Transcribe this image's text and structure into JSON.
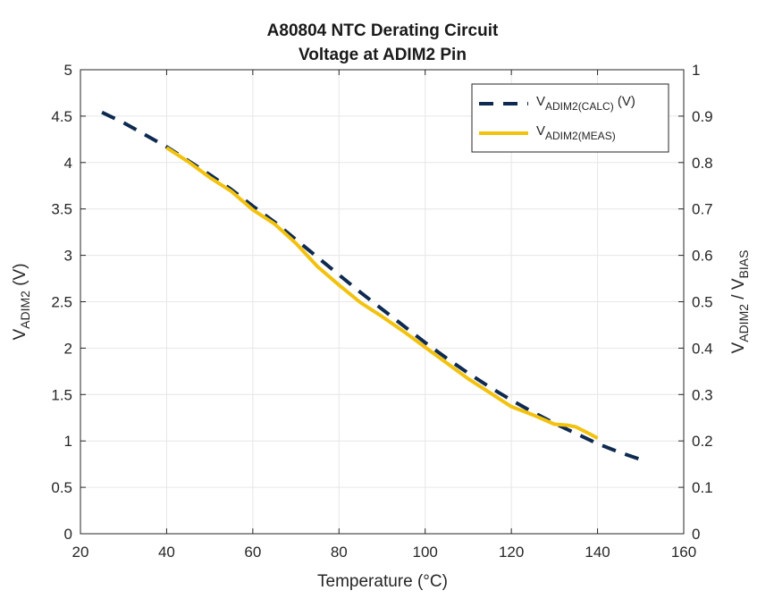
{
  "chart_data": {
    "type": "line",
    "title": [
      "A80804 NTC Derating Circuit",
      "Voltage at ADIM2 Pin"
    ],
    "xlabel": "Temperature (°C)",
    "ylabel": {
      "main": "V",
      "sub": "ADIM2",
      "suffix": " (V)"
    },
    "y2label": {
      "a_main": "V",
      "a_sub": "ADIM2",
      "sep": " / ",
      "b_main": "V",
      "b_sub": "BIAS"
    },
    "xlim": [
      20,
      160
    ],
    "ylim": [
      0,
      5
    ],
    "y2lim": [
      0,
      1
    ],
    "xticks": [
      "20",
      "40",
      "60",
      "80",
      "100",
      "120",
      "140",
      "160"
    ],
    "yticks": [
      "0",
      "0.5",
      "1",
      "1.5",
      "2",
      "2.5",
      "3",
      "3.5",
      "4",
      "4.5",
      "5"
    ],
    "y2ticks": [
      "0",
      "0.1",
      "0.2",
      "0.3",
      "0.4",
      "0.5",
      "0.6",
      "0.7",
      "0.8",
      "0.9",
      "1"
    ],
    "grid": true,
    "legend_position": "top-right",
    "series": [
      {
        "name": {
          "main": "V",
          "sub": "ADIM2(CALC)",
          "suffix": " (V)"
        },
        "style": "dashed",
        "color": "#0e2a50",
        "x": [
          25,
          30,
          35,
          40,
          45,
          50,
          55,
          60,
          65,
          70,
          75,
          80,
          85,
          90,
          95,
          100,
          105,
          110,
          115,
          120,
          125,
          130,
          135,
          140,
          145,
          150
        ],
        "y": [
          4.54,
          4.43,
          4.3,
          4.17,
          4.02,
          3.87,
          3.71,
          3.53,
          3.36,
          3.17,
          2.98,
          2.79,
          2.6,
          2.42,
          2.24,
          2.06,
          1.89,
          1.73,
          1.58,
          1.44,
          1.31,
          1.19,
          1.08,
          0.97,
          0.88,
          0.8
        ]
      },
      {
        "name": {
          "main": "V",
          "sub": "ADIM2(MEAS)",
          "suffix": ""
        },
        "style": "solid",
        "color": "#f2c20f",
        "x": [
          40,
          45,
          50,
          55,
          60,
          65,
          70,
          75,
          80,
          85,
          90,
          95,
          100,
          105,
          110,
          115,
          120,
          125,
          130,
          133,
          135,
          138,
          140
        ],
        "y": [
          4.16,
          4.01,
          3.84,
          3.69,
          3.49,
          3.34,
          3.13,
          2.88,
          2.68,
          2.49,
          2.34,
          2.18,
          2.01,
          1.84,
          1.67,
          1.52,
          1.37,
          1.28,
          1.18,
          1.17,
          1.15,
          1.08,
          1.03
        ]
      }
    ]
  }
}
